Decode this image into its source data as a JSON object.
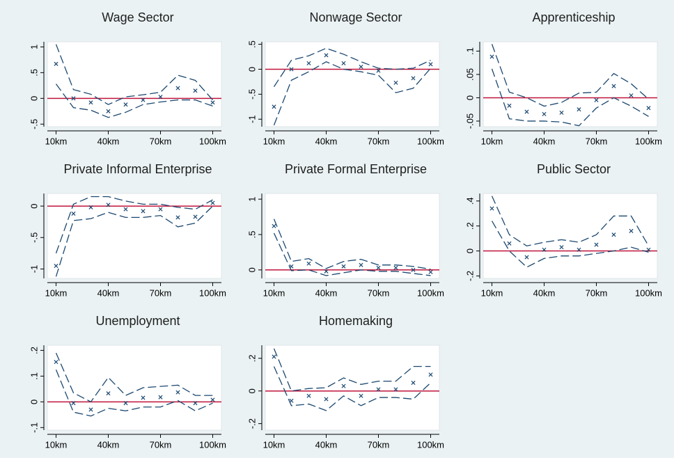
{
  "chart_data": [
    {
      "type": "line",
      "title": "Wage Sector",
      "x": [
        10,
        20,
        30,
        40,
        50,
        60,
        70,
        80,
        90,
        100
      ],
      "xlim": [
        5,
        105
      ],
      "xticks": [
        {
          "value": 10,
          "label": "10km"
        },
        {
          "value": 40,
          "label": "40km"
        },
        {
          "value": 70,
          "label": "70km"
        },
        {
          "value": 100,
          "label": "100km"
        }
      ],
      "ylim": [
        -0.55,
        1.1
      ],
      "yticks": [
        {
          "value": -0.5,
          "label": "-.5"
        },
        0,
        {
          "value": 0.5,
          "label": ".5"
        },
        1
      ],
      "refline": 0,
      "refline_color": "#c0143c",
      "series": [
        {
          "color": "#1a476f",
          "marker": "x",
          "values": [
            0.67,
            0.0,
            -0.08,
            -0.25,
            -0.12,
            -0.03,
            0.03,
            0.2,
            0.15,
            -0.08
          ]
        },
        {
          "color": "#1a476f",
          "dash": true,
          "values": [
            1.05,
            0.17,
            0.08,
            -0.12,
            0.03,
            0.07,
            0.12,
            0.45,
            0.35,
            -0.03
          ]
        },
        {
          "color": "#1a476f",
          "dash": true,
          "values": [
            0.28,
            -0.18,
            -0.23,
            -0.37,
            -0.27,
            -0.12,
            -0.07,
            -0.03,
            -0.03,
            -0.15
          ]
        }
      ]
    },
    {
      "type": "line",
      "title": "Nonwage Sector",
      "x": [
        10,
        20,
        30,
        40,
        50,
        60,
        70,
        80,
        90,
        100
      ],
      "xlim": [
        5,
        105
      ],
      "xticks": [
        {
          "value": 10,
          "label": "10km"
        },
        {
          "value": 40,
          "label": "40km"
        },
        {
          "value": 70,
          "label": "70km"
        },
        {
          "value": 100,
          "label": "100km"
        }
      ],
      "ylim": [
        -1.15,
        0.55
      ],
      "yticks": [
        -1,
        {
          "value": -0.5,
          "label": "-.5"
        },
        0,
        {
          "value": 0.5,
          "label": ".5"
        }
      ],
      "refline": 0,
      "refline_color": "#c0143c",
      "series": [
        {
          "color": "#1a476f",
          "marker": "x",
          "values": [
            -0.75,
            0.0,
            0.12,
            0.28,
            0.12,
            0.05,
            -0.03,
            -0.27,
            -0.18,
            0.1
          ]
        },
        {
          "color": "#1a476f",
          "dash": true,
          "values": [
            -0.35,
            0.18,
            0.27,
            0.42,
            0.3,
            0.15,
            0.02,
            0.0,
            0.02,
            0.18
          ]
        },
        {
          "color": "#1a476f",
          "dash": true,
          "values": [
            -1.12,
            -0.22,
            -0.05,
            0.15,
            0.0,
            -0.05,
            -0.12,
            -0.47,
            -0.38,
            0.02
          ]
        }
      ]
    },
    {
      "type": "line",
      "title": "Apprenticeship",
      "x": [
        10,
        20,
        30,
        40,
        50,
        60,
        70,
        80,
        90,
        100
      ],
      "xlim": [
        5,
        105
      ],
      "xticks": [
        {
          "value": 10,
          "label": "10km"
        },
        {
          "value": 40,
          "label": "40km"
        },
        {
          "value": 70,
          "label": "70km"
        },
        {
          "value": 100,
          "label": "100km"
        }
      ],
      "ylim": [
        -0.062,
        0.12
      ],
      "yticks": [
        {
          "value": -0.05,
          "label": "-.05"
        },
        0,
        {
          "value": 0.05,
          "label": ".05"
        },
        {
          "value": 0.1,
          "label": ".1"
        }
      ],
      "refline": 0,
      "refline_color": "#c0143c",
      "series": [
        {
          "color": "#1a476f",
          "marker": "x",
          "values": [
            0.088,
            -0.017,
            -0.03,
            -0.035,
            -0.032,
            -0.025,
            -0.005,
            0.025,
            0.005,
            -0.022
          ]
        },
        {
          "color": "#1a476f",
          "dash": true,
          "values": [
            0.115,
            0.012,
            0.0,
            -0.018,
            -0.01,
            0.01,
            0.012,
            0.052,
            0.03,
            -0.003
          ]
        },
        {
          "color": "#1a476f",
          "dash": true,
          "values": [
            0.062,
            -0.045,
            -0.05,
            -0.05,
            -0.052,
            -0.06,
            -0.022,
            0.0,
            -0.018,
            -0.04
          ]
        }
      ]
    },
    {
      "type": "line",
      "title": "Private Informal Enterprise",
      "x": [
        10,
        20,
        30,
        40,
        50,
        60,
        70,
        80,
        90,
        100
      ],
      "xlim": [
        5,
        105
      ],
      "xticks": [
        {
          "value": 10,
          "label": "10km"
        },
        {
          "value": 40,
          "label": "40km"
        },
        {
          "value": 70,
          "label": "70km"
        },
        {
          "value": 100,
          "label": "100km"
        }
      ],
      "ylim": [
        -1.15,
        0.2
      ],
      "yticks": [
        -1,
        {
          "value": -0.5,
          "label": "-.5"
        },
        0
      ],
      "refline": 0,
      "refline_color": "#c0143c",
      "series": [
        {
          "color": "#1a476f",
          "marker": "x",
          "values": [
            -0.95,
            -0.12,
            -0.02,
            0.02,
            -0.05,
            -0.08,
            -0.05,
            -0.18,
            -0.17,
            0.05
          ]
        },
        {
          "color": "#1a476f",
          "dash": true,
          "values": [
            -0.75,
            0.03,
            0.15,
            0.15,
            0.08,
            0.03,
            0.03,
            -0.02,
            -0.05,
            0.1
          ]
        },
        {
          "color": "#1a476f",
          "dash": true,
          "values": [
            -1.12,
            -0.23,
            -0.2,
            -0.1,
            -0.18,
            -0.18,
            -0.15,
            -0.33,
            -0.27,
            0.0
          ]
        }
      ]
    },
    {
      "type": "line",
      "title": "Private Formal Enterprise",
      "x": [
        10,
        20,
        30,
        40,
        50,
        60,
        70,
        80,
        90,
        100
      ],
      "xlim": [
        5,
        105
      ],
      "xticks": [
        {
          "value": 10,
          "label": "10km"
        },
        {
          "value": 40,
          "label": "40km"
        },
        {
          "value": 70,
          "label": "70km"
        },
        {
          "value": 100,
          "label": "100km"
        }
      ],
      "ylim": [
        -0.12,
        1.08
      ],
      "yticks": [
        0,
        {
          "value": 0.5,
          "label": ".5"
        },
        1
      ],
      "refline": 0,
      "refline_color": "#c0143c",
      "series": [
        {
          "color": "#1a476f",
          "marker": "x",
          "values": [
            0.62,
            0.05,
            0.09,
            -0.02,
            0.05,
            0.07,
            0.03,
            0.03,
            0.0,
            -0.03
          ]
        },
        {
          "color": "#1a476f",
          "dash": true,
          "values": [
            0.72,
            0.12,
            0.16,
            0.02,
            0.12,
            0.15,
            0.07,
            0.07,
            0.05,
            0.01
          ]
        },
        {
          "color": "#1a476f",
          "dash": true,
          "values": [
            0.52,
            -0.01,
            0.0,
            -0.08,
            -0.04,
            0.0,
            -0.02,
            -0.02,
            -0.05,
            -0.08
          ]
        }
      ]
    },
    {
      "type": "line",
      "title": "Public Sector",
      "x": [
        10,
        20,
        30,
        40,
        50,
        60,
        70,
        80,
        90,
        100
      ],
      "xlim": [
        5,
        105
      ],
      "xticks": [
        {
          "value": 10,
          "label": "10km"
        },
        {
          "value": 40,
          "label": "40km"
        },
        {
          "value": 70,
          "label": "70km"
        },
        {
          "value": 100,
          "label": "100km"
        }
      ],
      "ylim": [
        -0.22,
        0.46
      ],
      "yticks": [
        {
          "value": -0.2,
          "label": "-.2"
        },
        0,
        {
          "value": 0.2,
          "label": ".2"
        },
        {
          "value": 0.4,
          "label": ".4"
        }
      ],
      "refline": 0,
      "refline_color": "#c0143c",
      "series": [
        {
          "color": "#1a476f",
          "marker": "x",
          "values": [
            0.34,
            0.06,
            -0.05,
            0.01,
            0.03,
            0.01,
            0.05,
            0.13,
            0.16,
            0.01
          ]
        },
        {
          "color": "#1a476f",
          "dash": true,
          "values": [
            0.44,
            0.13,
            0.04,
            0.07,
            0.09,
            0.07,
            0.13,
            0.28,
            0.28,
            0.04
          ]
        },
        {
          "color": "#1a476f",
          "dash": true,
          "values": [
            0.24,
            0.0,
            -0.13,
            -0.06,
            -0.04,
            -0.04,
            -0.02,
            0.0,
            0.03,
            -0.01
          ]
        }
      ]
    },
    {
      "type": "line",
      "title": "Unemployment",
      "x": [
        10,
        20,
        30,
        40,
        50,
        60,
        70,
        80,
        90,
        100
      ],
      "xlim": [
        5,
        105
      ],
      "xticks": [
        {
          "value": 10,
          "label": "10km"
        },
        {
          "value": 40,
          "label": "40km"
        },
        {
          "value": 70,
          "label": "70km"
        },
        {
          "value": 100,
          "label": "100km"
        }
      ],
      "ylim": [
        -0.11,
        0.22
      ],
      "yticks": [
        {
          "value": -0.1,
          "label": "-.1"
        },
        0,
        {
          "value": 0.1,
          "label": ".1"
        },
        {
          "value": 0.2,
          "label": ".2"
        }
      ],
      "refline": 0,
      "refline_color": "#c0143c",
      "series": [
        {
          "color": "#1a476f",
          "marker": "x",
          "values": [
            0.155,
            -0.005,
            -0.03,
            0.033,
            -0.005,
            0.016,
            0.018,
            0.037,
            -0.005,
            0.008
          ]
        },
        {
          "color": "#1a476f",
          "dash": true,
          "values": [
            0.19,
            0.035,
            0.0,
            0.095,
            0.025,
            0.055,
            0.06,
            0.065,
            0.025,
            0.025
          ]
        },
        {
          "color": "#1a476f",
          "dash": true,
          "values": [
            0.125,
            -0.04,
            -0.055,
            -0.025,
            -0.035,
            -0.02,
            -0.02,
            0.005,
            -0.035,
            -0.005
          ]
        }
      ]
    },
    {
      "type": "line",
      "title": "Homemaking",
      "x": [
        10,
        20,
        30,
        40,
        50,
        60,
        70,
        80,
        90,
        100
      ],
      "xlim": [
        5,
        105
      ],
      "xticks": [
        {
          "value": 10,
          "label": "10km"
        },
        {
          "value": 40,
          "label": "40km"
        },
        {
          "value": 70,
          "label": "70km"
        },
        {
          "value": 100,
          "label": "100km"
        }
      ],
      "ylim": [
        -0.24,
        0.28
      ],
      "yticks": [
        {
          "value": -0.2,
          "label": "-.2"
        },
        0,
        {
          "value": 0.2,
          "label": ".2"
        }
      ],
      "refline": 0,
      "refline_color": "#c0143c",
      "series": [
        {
          "color": "#1a476f",
          "marker": "x",
          "values": [
            0.21,
            -0.06,
            -0.03,
            -0.05,
            0.03,
            -0.03,
            0.01,
            0.01,
            0.05,
            0.1
          ]
        },
        {
          "color": "#1a476f",
          "dash": true,
          "values": [
            0.26,
            0.0,
            0.015,
            0.02,
            0.08,
            0.04,
            0.06,
            0.06,
            0.15,
            0.15
          ]
        },
        {
          "color": "#1a476f",
          "dash": true,
          "values": [
            0.15,
            -0.09,
            -0.08,
            -0.12,
            -0.03,
            -0.09,
            -0.04,
            -0.04,
            -0.05,
            0.05
          ]
        }
      ]
    }
  ]
}
